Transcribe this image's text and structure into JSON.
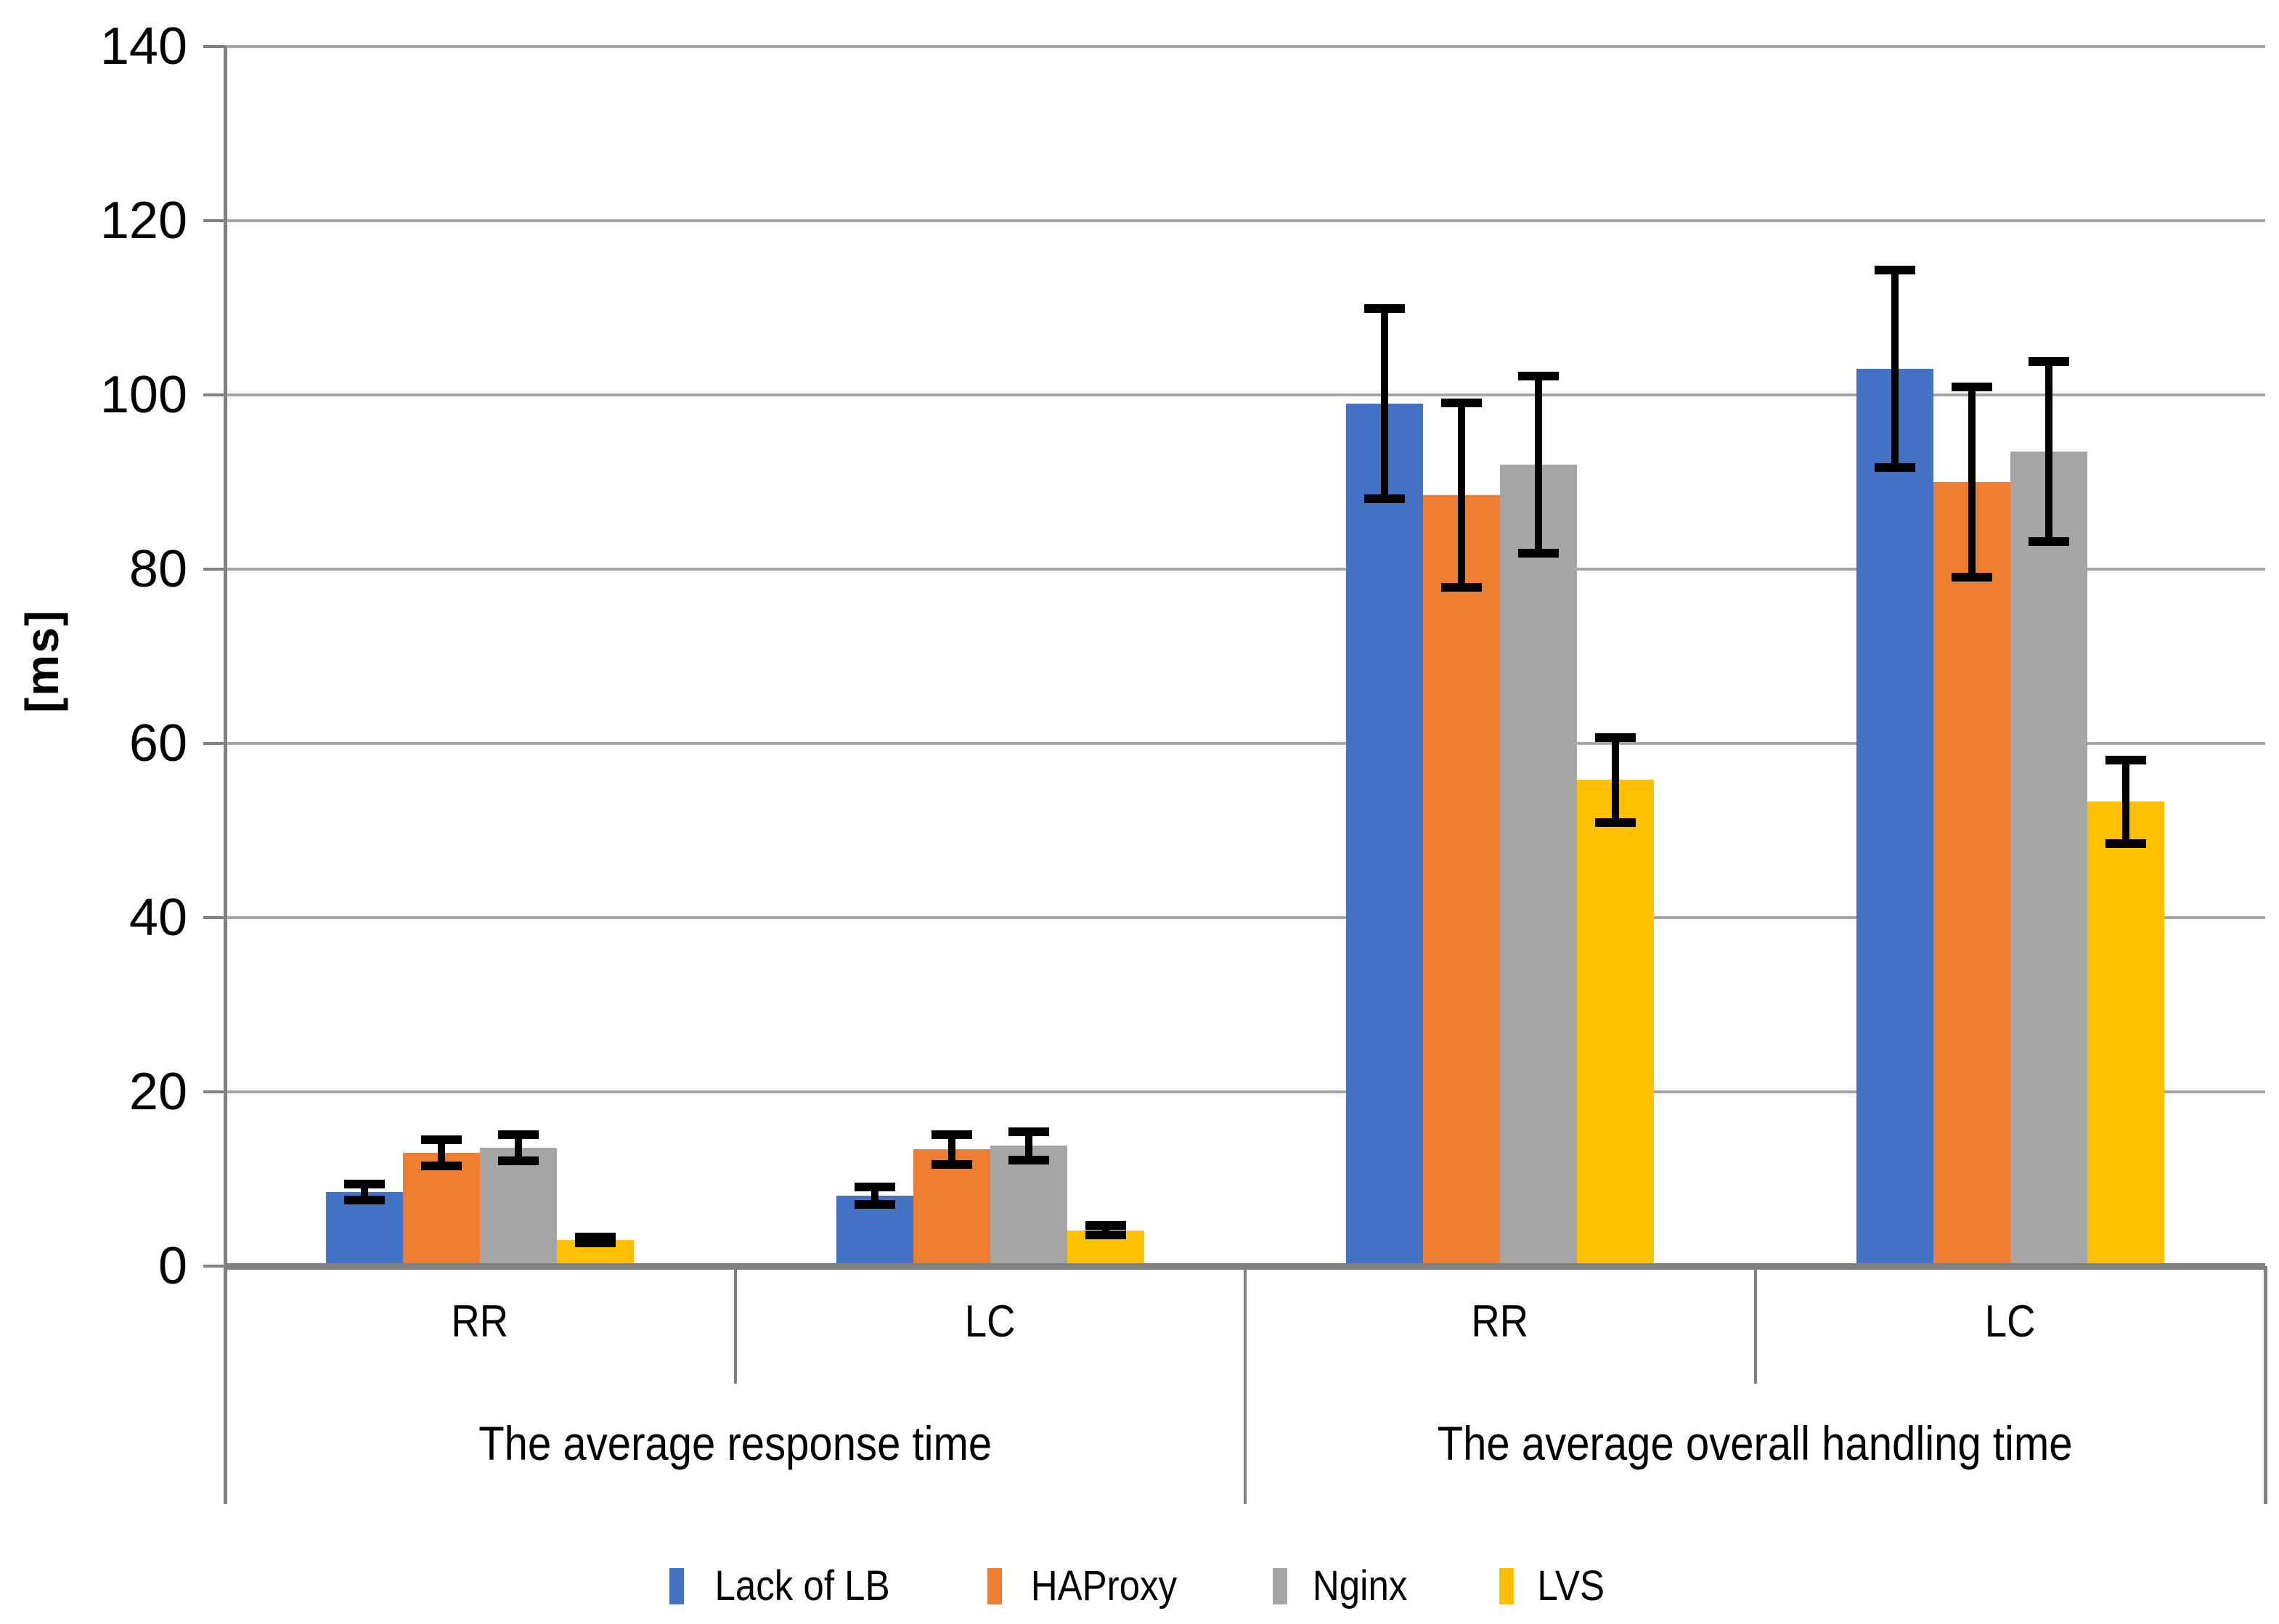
{
  "chart_data": {
    "type": "bar",
    "title": "",
    "ylabel": "[ms]",
    "xlabel": "",
    "ylim": [
      0,
      140
    ],
    "ytick_step": 20,
    "yticks": [
      0,
      20,
      40,
      60,
      80,
      100,
      120,
      140
    ],
    "grid": true,
    "legend_position": "bottom",
    "axis_color": "#808080",
    "gridline_color": "#a6a6a6",
    "error_bar_color": "#000000",
    "group_labels": [
      "The average response time",
      "The average overall handling time"
    ],
    "categories": [
      "RR",
      "LC",
      "RR",
      "LC"
    ],
    "category_groups": [
      0,
      0,
      1,
      1
    ],
    "series": [
      {
        "name": "Lack of LB",
        "color": "#4472C4",
        "values": [
          8.5,
          8.1,
          99,
          103
        ],
        "errors": [
          0.9,
          1.0,
          10.9,
          11.3
        ]
      },
      {
        "name": "HAProxy",
        "color": "#ED7D31",
        "values": [
          13.0,
          13.4,
          88.5,
          90
        ],
        "errors": [
          1.5,
          1.7,
          10.6,
          10.9
        ]
      },
      {
        "name": "Nginx",
        "color": "#A5A5A5",
        "values": [
          13.6,
          13.8,
          92,
          93.5
        ],
        "errors": [
          1.5,
          1.6,
          10.2,
          10.3
        ]
      },
      {
        "name": "LVS",
        "color": "#FFC000",
        "values": [
          3.0,
          4.1,
          55.8,
          53.3
        ],
        "errors": [
          0.3,
          0.55,
          4.9,
          4.8
        ]
      }
    ]
  }
}
